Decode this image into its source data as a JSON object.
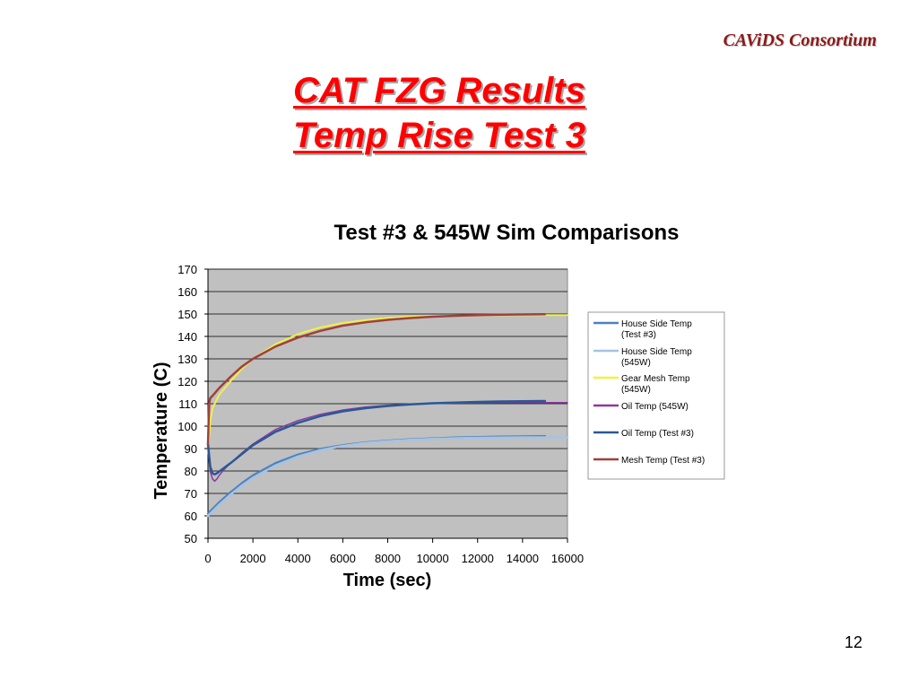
{
  "header": {
    "brand": "CAViDS Consortium"
  },
  "title": {
    "line1": "CAT FZG Results",
    "line2": "Temp Rise Test 3"
  },
  "footer": {
    "page_number": "12"
  },
  "chart_data": {
    "type": "line",
    "title": "Test #3 & 545W Sim Comparisons",
    "xlabel": "Time (sec)",
    "ylabel": "Temperature (C)",
    "xlim": [
      0,
      16000
    ],
    "ylim": [
      50,
      170
    ],
    "xticks": [
      0,
      2000,
      4000,
      6000,
      8000,
      10000,
      12000,
      14000,
      16000
    ],
    "yticks": [
      50,
      60,
      70,
      80,
      90,
      100,
      110,
      120,
      130,
      140,
      150,
      160,
      170
    ],
    "grid": true,
    "legend_position": "right",
    "series": [
      {
        "name": "House Side Temp (Test #3)",
        "legend_lines": [
          "House Side Temp",
          "(Test #3)"
        ],
        "color": "#4f81bd",
        "width": 2.5,
        "x": [
          0,
          500,
          1000,
          1500,
          2000,
          3000,
          4000,
          5000,
          6000,
          7000,
          8000,
          9000,
          10000,
          11000,
          12000,
          13000,
          14000,
          15000
        ],
        "y": [
          61,
          66,
          70.5,
          74.5,
          78,
          83.5,
          87.3,
          89.8,
          91.5,
          92.7,
          93.5,
          94.1,
          94.5,
          94.9,
          95.1,
          95.3,
          95.4,
          95.5
        ]
      },
      {
        "name": "House Side Temp (545W)",
        "legend_lines": [
          "House Side Temp",
          "(545W)"
        ],
        "color": "#a6c3e2",
        "width": 2.5,
        "x": [
          0,
          500,
          1000,
          1500,
          2000,
          3000,
          4000,
          5000,
          6000,
          7000,
          8000,
          9000,
          10000,
          11000,
          12000,
          13000,
          14000,
          15000,
          16000
        ],
        "y": [
          60,
          65,
          69.5,
          73.5,
          77,
          82.5,
          86.5,
          89.3,
          91.2,
          92.5,
          93.3,
          93.9,
          94.3,
          94.6,
          94.8,
          94.9,
          95,
          95,
          95
        ]
      },
      {
        "name": "Gear Mesh Temp (545W)",
        "legend_lines": [
          "Gear Mesh Temp",
          "(545W)"
        ],
        "color": "#f0f04a",
        "width": 2,
        "x": [
          0,
          100,
          200,
          500,
          1000,
          1500,
          2000,
          3000,
          4000,
          5000,
          6000,
          7000,
          8000,
          9000,
          10000,
          11000,
          12000,
          13000,
          14000,
          15000,
          16000
        ],
        "y": [
          88,
          102,
          108,
          114,
          120,
          125.5,
          130,
          136.5,
          141,
          144,
          146,
          147.3,
          148.2,
          148.8,
          149.1,
          149.3,
          149.4,
          149.5,
          149.5,
          149.5,
          149.5
        ]
      },
      {
        "name": "Oil Temp (545W)",
        "legend_lines": [
          "Oil Temp (545W)"
        ],
        "color": "#8b3a9e",
        "width": 1.5,
        "x": [
          0,
          100,
          200,
          300,
          400,
          500,
          700,
          1000,
          1500,
          2000,
          3000,
          4000,
          5000,
          6000,
          7000,
          8000,
          9000,
          10000,
          11000,
          12000,
          13000,
          14000,
          15000,
          16000
        ],
        "y": [
          90,
          80,
          76.5,
          75.5,
          76.5,
          78,
          80.5,
          83.5,
          88,
          92,
          98.5,
          102.5,
          105.3,
          107.2,
          108.5,
          109.3,
          109.8,
          110.1,
          110.3,
          110.4,
          110.5,
          110.5,
          110.5,
          110.5
        ]
      },
      {
        "name": "Oil Temp (Test #3)",
        "legend_lines": [
          "Oil Temp (Test #3)"
        ],
        "color": "#2b5797",
        "width": 2.5,
        "x": [
          0,
          100,
          200,
          300,
          400,
          600,
          1000,
          1500,
          2000,
          3000,
          4000,
          5000,
          6000,
          7000,
          8000,
          9000,
          10000,
          11000,
          12000,
          13000,
          14000,
          15000
        ],
        "y": [
          92,
          82,
          79,
          78.5,
          79,
          80.5,
          83.5,
          87.5,
          91.5,
          97.5,
          101.5,
          104.5,
          106.6,
          108,
          109,
          109.7,
          110.2,
          110.5,
          110.8,
          111,
          111.1,
          111.2
        ]
      },
      {
        "name": "Mesh Temp (Test #3)",
        "legend_lines": [
          "Mesh Temp (Test #3)"
        ],
        "color": "#a0403a",
        "width": 2.5,
        "x": [
          0,
          50,
          100,
          200,
          500,
          1000,
          1500,
          2000,
          3000,
          4000,
          5000,
          6000,
          7000,
          8000,
          9000,
          10000,
          11000,
          12000,
          13000,
          14000,
          15000
        ],
        "y": [
          92,
          110,
          112.5,
          113.5,
          117,
          122,
          126.5,
          130,
          135.5,
          139.5,
          142.5,
          144.8,
          146.3,
          147.4,
          148.2,
          148.8,
          149.2,
          149.5,
          149.7,
          149.8,
          149.9
        ]
      }
    ]
  }
}
